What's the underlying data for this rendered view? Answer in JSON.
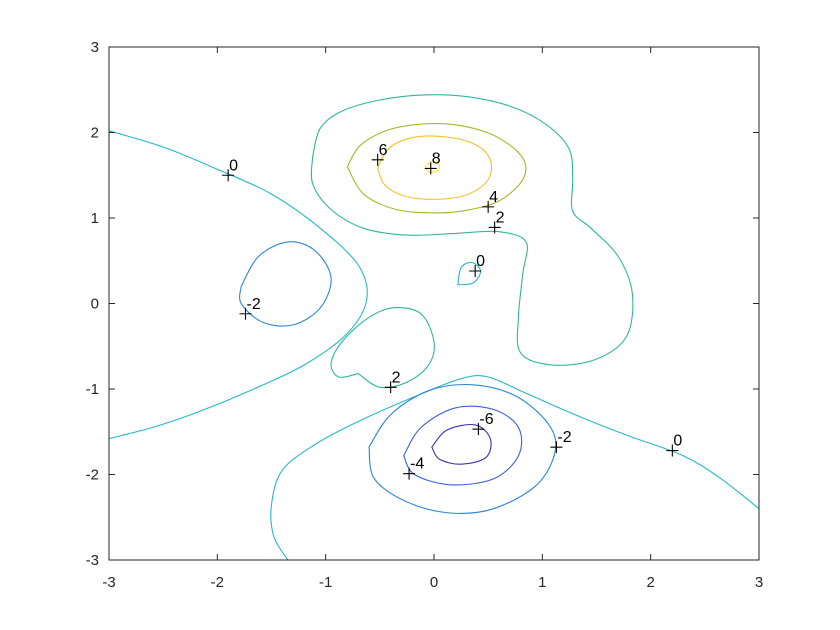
{
  "chart_data": {
    "type": "contour",
    "title": "",
    "xlabel": "",
    "ylabel": "",
    "xlim": [
      -3,
      3
    ],
    "ylim": [
      -3,
      3
    ],
    "xticks": [
      -3,
      -2,
      -1,
      0,
      1,
      2,
      3
    ],
    "yticks": [
      -3,
      -2,
      -1,
      0,
      1,
      2,
      3
    ],
    "grid": false,
    "levels": [
      {
        "value": 8,
        "color": "#fde725"
      },
      {
        "value": 6,
        "color": "#ecc233"
      },
      {
        "value": 4,
        "color": "#a7b628"
      },
      {
        "value": 2,
        "color": "#2fb69c"
      },
      {
        "value": 0,
        "color": "#25b8c9"
      },
      {
        "value": -2,
        "color": "#2e86d6"
      },
      {
        "value": -4,
        "color": "#3f5ee3"
      },
      {
        "value": -6,
        "color": "#3b2fb8"
      }
    ],
    "contours": [
      {
        "level": 8,
        "points": [
          [
            -0.08,
            1.6
          ],
          [
            -0.02,
            1.66
          ],
          [
            0.05,
            1.62
          ],
          [
            0.03,
            1.55
          ],
          [
            -0.05,
            1.54
          ],
          [
            -0.08,
            1.6
          ]
        ]
      },
      {
        "level": 6,
        "points": [
          [
            -0.52,
            1.58
          ],
          [
            -0.42,
            1.81
          ],
          [
            -0.2,
            1.94
          ],
          [
            0.1,
            1.95
          ],
          [
            0.38,
            1.86
          ],
          [
            0.52,
            1.68
          ],
          [
            0.5,
            1.45
          ],
          [
            0.32,
            1.28
          ],
          [
            0.05,
            1.22
          ],
          [
            -0.25,
            1.25
          ],
          [
            -0.45,
            1.38
          ],
          [
            -0.52,
            1.58
          ]
        ]
      },
      {
        "level": 4,
        "points": [
          [
            -0.8,
            1.6
          ],
          [
            -0.68,
            1.85
          ],
          [
            -0.42,
            2.03
          ],
          [
            -0.1,
            2.1
          ],
          [
            0.25,
            2.08
          ],
          [
            0.58,
            1.95
          ],
          [
            0.82,
            1.7
          ],
          [
            0.82,
            1.45
          ],
          [
            0.6,
            1.2
          ],
          [
            0.3,
            1.09
          ],
          [
            0.0,
            1.06
          ],
          [
            -0.35,
            1.1
          ],
          [
            -0.65,
            1.28
          ],
          [
            -0.8,
            1.6
          ]
        ]
      },
      {
        "level": 2,
        "points": [
          [
            -1.12,
            1.72
          ],
          [
            -1.05,
            2.05
          ],
          [
            -0.85,
            2.25
          ],
          [
            -0.5,
            2.38
          ],
          [
            -0.1,
            2.44
          ],
          [
            0.3,
            2.42
          ],
          [
            0.72,
            2.3
          ],
          [
            1.05,
            2.08
          ],
          [
            1.25,
            1.8
          ],
          [
            1.28,
            1.45
          ],
          [
            1.28,
            1.08
          ],
          [
            1.45,
            0.88
          ],
          [
            1.7,
            0.55
          ],
          [
            1.83,
            0.12
          ],
          [
            1.78,
            -0.38
          ],
          [
            1.5,
            -0.65
          ],
          [
            1.1,
            -0.72
          ],
          [
            0.8,
            -0.58
          ],
          [
            0.78,
            -0.15
          ],
          [
            0.82,
            0.35
          ],
          [
            0.85,
            0.72
          ],
          [
            0.6,
            0.84
          ],
          [
            0.2,
            0.82
          ],
          [
            -0.25,
            0.8
          ],
          [
            -0.65,
            0.88
          ],
          [
            -0.95,
            1.1
          ],
          [
            -1.12,
            1.4
          ],
          [
            -1.12,
            1.72
          ]
        ]
      },
      {
        "level": 2,
        "points": [
          [
            -0.7,
            -0.82
          ],
          [
            -0.5,
            -0.98
          ],
          [
            -0.25,
            -0.92
          ],
          [
            -0.05,
            -0.72
          ],
          [
            0.0,
            -0.45
          ],
          [
            -0.12,
            -0.12
          ],
          [
            -0.38,
            -0.05
          ],
          [
            -0.62,
            -0.18
          ],
          [
            -0.85,
            -0.45
          ],
          [
            -0.95,
            -0.7
          ],
          [
            -0.88,
            -0.86
          ],
          [
            -0.7,
            -0.82
          ]
        ]
      },
      {
        "level": 0,
        "points": [
          [
            -3.0,
            2.02
          ],
          [
            -2.5,
            1.83
          ],
          [
            -2.0,
            1.57
          ],
          [
            -1.5,
            1.28
          ],
          [
            -1.05,
            0.88
          ],
          [
            -0.7,
            0.45
          ],
          [
            -0.62,
            0.05
          ],
          [
            -0.8,
            -0.35
          ],
          [
            -1.2,
            -0.72
          ],
          [
            -1.7,
            -1.02
          ],
          [
            -2.2,
            -1.28
          ],
          [
            -2.6,
            -1.45
          ],
          [
            -3.0,
            -1.58
          ]
        ]
      },
      {
        "level": 0,
        "points": [
          [
            -1.35,
            -3.0
          ],
          [
            -1.48,
            -2.72
          ],
          [
            -1.5,
            -2.35
          ],
          [
            -1.4,
            -1.95
          ],
          [
            -1.1,
            -1.65
          ],
          [
            -0.7,
            -1.38
          ],
          [
            -0.2,
            -1.1
          ],
          [
            0.25,
            -0.88
          ],
          [
            0.5,
            -0.86
          ],
          [
            0.85,
            -1.05
          ],
          [
            1.3,
            -1.3
          ],
          [
            1.8,
            -1.55
          ],
          [
            2.3,
            -1.78
          ],
          [
            2.65,
            -2.05
          ],
          [
            3.0,
            -2.4
          ]
        ]
      },
      {
        "level": 0,
        "points": [
          [
            0.22,
            0.22
          ],
          [
            0.36,
            0.24
          ],
          [
            0.43,
            0.38
          ],
          [
            0.35,
            0.48
          ],
          [
            0.25,
            0.42
          ],
          [
            0.22,
            0.22
          ]
        ]
      },
      {
        "level": -2,
        "points": [
          [
            -1.78,
            0.2
          ],
          [
            -1.62,
            0.55
          ],
          [
            -1.35,
            0.72
          ],
          [
            -1.1,
            0.62
          ],
          [
            -0.95,
            0.3
          ],
          [
            -1.05,
            -0.05
          ],
          [
            -1.3,
            -0.25
          ],
          [
            -1.58,
            -0.22
          ],
          [
            -1.78,
            0.0
          ],
          [
            -1.78,
            0.2
          ]
        ]
      },
      {
        "level": -2,
        "points": [
          [
            -0.6,
            -1.68
          ],
          [
            -0.4,
            -1.3
          ],
          [
            -0.05,
            -1.02
          ],
          [
            0.35,
            -0.95
          ],
          [
            0.75,
            -1.08
          ],
          [
            1.05,
            -1.4
          ],
          [
            1.12,
            -1.72
          ],
          [
            0.95,
            -2.12
          ],
          [
            0.55,
            -2.4
          ],
          [
            0.15,
            -2.45
          ],
          [
            -0.25,
            -2.32
          ],
          [
            -0.55,
            -2.05
          ],
          [
            -0.6,
            -1.68
          ]
        ]
      },
      {
        "level": -4,
        "points": [
          [
            -0.28,
            -1.78
          ],
          [
            -0.12,
            -1.45
          ],
          [
            0.2,
            -1.22
          ],
          [
            0.55,
            -1.24
          ],
          [
            0.78,
            -1.45
          ],
          [
            0.78,
            -1.78
          ],
          [
            0.55,
            -2.05
          ],
          [
            0.15,
            -2.12
          ],
          [
            -0.18,
            -2.0
          ],
          [
            -0.28,
            -1.78
          ]
        ]
      },
      {
        "level": -6,
        "points": [
          [
            -0.02,
            -1.68
          ],
          [
            0.12,
            -1.48
          ],
          [
            0.38,
            -1.42
          ],
          [
            0.52,
            -1.58
          ],
          [
            0.48,
            -1.8
          ],
          [
            0.25,
            -1.88
          ],
          [
            0.05,
            -1.82
          ],
          [
            -0.02,
            -1.68
          ]
        ]
      }
    ],
    "labels": [
      {
        "text": "0",
        "x": -1.9,
        "y": 1.5
      },
      {
        "text": "6",
        "x": -0.52,
        "y": 1.68
      },
      {
        "text": "8",
        "x": -0.03,
        "y": 1.58
      },
      {
        "text": "4",
        "x": 0.5,
        "y": 1.13
      },
      {
        "text": "2",
        "x": 0.56,
        "y": 0.89
      },
      {
        "text": "0",
        "x": 0.38,
        "y": 0.38
      },
      {
        "text": "-2",
        "x": -1.74,
        "y": -0.12
      },
      {
        "text": "2",
        "x": -0.4,
        "y": -0.98
      },
      {
        "text": "-6",
        "x": 0.41,
        "y": -1.47
      },
      {
        "text": "-2",
        "x": 1.13,
        "y": -1.68
      },
      {
        "text": "0",
        "x": 2.2,
        "y": -1.72
      },
      {
        "text": "-4",
        "x": -0.23,
        "y": -1.99
      }
    ]
  }
}
